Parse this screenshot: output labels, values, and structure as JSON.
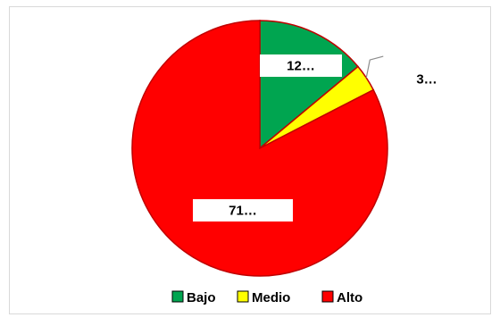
{
  "chart_data": {
    "type": "pie",
    "categories": [
      "Bajo",
      "Medio",
      "Alto"
    ],
    "values": [
      12,
      3,
      71
    ],
    "data_labels": [
      "12…",
      "3…",
      "71…"
    ],
    "colors": [
      "#00a550",
      "#ffff00",
      "#ff0000"
    ],
    "legend": {
      "placement": "bottom",
      "entries": [
        "Bajo",
        "Medio",
        "Alto"
      ]
    }
  }
}
